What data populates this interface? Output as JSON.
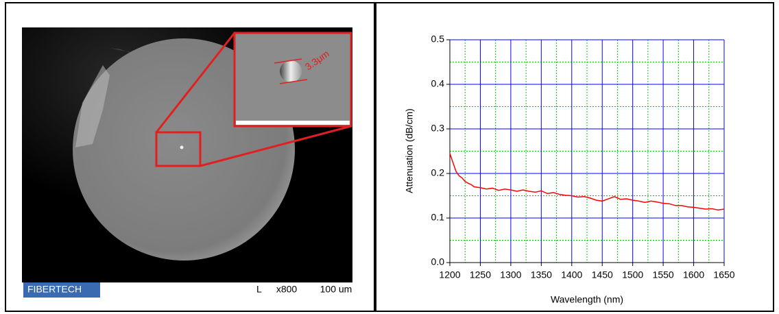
{
  "image": {
    "logo": "FIBERTECH",
    "scale_mode": "L",
    "magnification": "x800",
    "scale_bar": "100 um",
    "inset_label": "3.3μm"
  },
  "chart_data": {
    "type": "line",
    "xlabel": "Wavelength (nm)",
    "ylabel": "Attenuation (dB/cm)",
    "x": [
      1200,
      1205,
      1210,
      1215,
      1220,
      1225,
      1230,
      1235,
      1240,
      1250,
      1260,
      1270,
      1280,
      1290,
      1300,
      1310,
      1320,
      1330,
      1340,
      1350,
      1360,
      1370,
      1380,
      1390,
      1400,
      1410,
      1420,
      1430,
      1440,
      1450,
      1460,
      1470,
      1480,
      1490,
      1500,
      1510,
      1520,
      1530,
      1540,
      1550,
      1560,
      1570,
      1580,
      1590,
      1600,
      1610,
      1620,
      1630,
      1640,
      1650
    ],
    "values": [
      0.245,
      0.225,
      0.205,
      0.195,
      0.19,
      0.182,
      0.178,
      0.175,
      0.17,
      0.168,
      0.165,
      0.167,
      0.162,
      0.165,
      0.163,
      0.16,
      0.163,
      0.16,
      0.158,
      0.161,
      0.155,
      0.157,
      0.153,
      0.151,
      0.15,
      0.147,
      0.148,
      0.145,
      0.14,
      0.138,
      0.143,
      0.148,
      0.142,
      0.143,
      0.14,
      0.138,
      0.135,
      0.138,
      0.136,
      0.133,
      0.132,
      0.128,
      0.128,
      0.125,
      0.124,
      0.122,
      0.12,
      0.121,
      0.118,
      0.12
    ],
    "color": "#ff0000",
    "xlim": [
      1200,
      1650
    ],
    "xticks": [
      1200,
      1250,
      1300,
      1350,
      1400,
      1450,
      1500,
      1550,
      1600,
      1650
    ],
    "ylim": [
      0,
      0.5
    ],
    "yticks": [
      {
        "value": 0,
        "label": "0.0"
      },
      0.1,
      0.2,
      0.3,
      0.4,
      0.5
    ],
    "minor_xticks": [
      1225,
      1275,
      1325,
      1375,
      1425,
      1475,
      1525,
      1575,
      1625
    ],
    "minor_yticks": [
      0.05,
      0.15,
      0.25,
      0.35,
      0.45
    ],
    "grid": true,
    "grid_color": "#0000ff",
    "minor_grid_color": "#00cc00"
  }
}
